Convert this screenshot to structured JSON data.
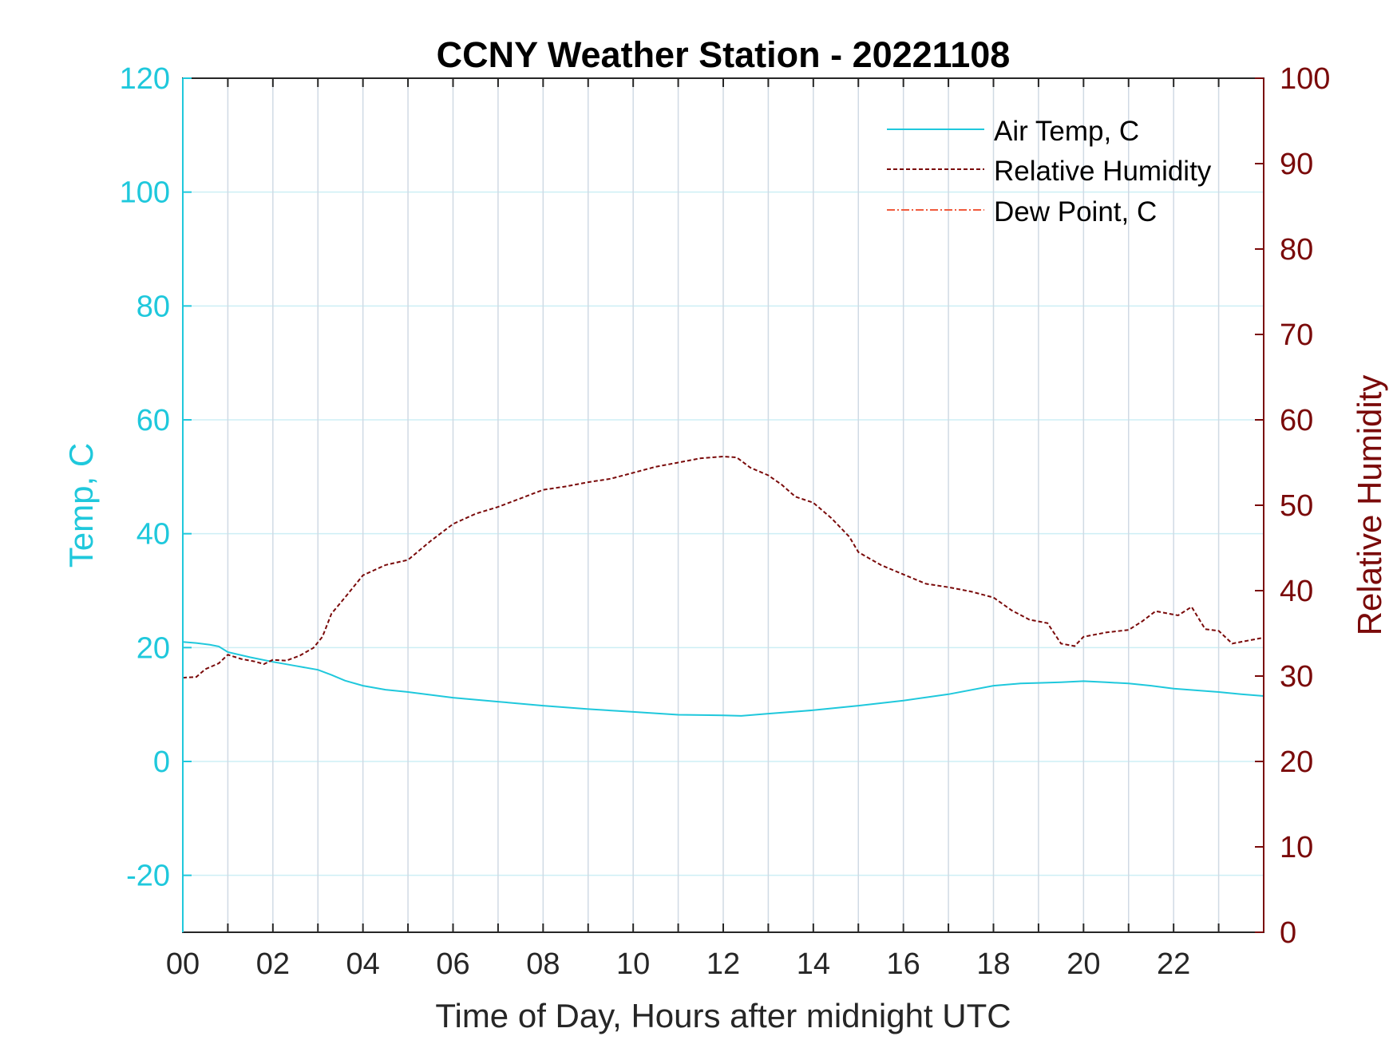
{
  "chart_data": {
    "type": "line",
    "title": "CCNY Weather Station - 20221108",
    "xlabel": "Time of Day, Hours after midnight UTC",
    "ylabel_left": "Temp, C",
    "ylabel_right": "Relative Humidity",
    "xlim": [
      0,
      24
    ],
    "ylim_left": [
      -30,
      120
    ],
    "ylim_right": [
      0,
      100
    ],
    "x_ticks": [
      0,
      2,
      4,
      6,
      8,
      10,
      12,
      14,
      16,
      18,
      20,
      22
    ],
    "x_tick_labels": [
      "00",
      "02",
      "04",
      "06",
      "08",
      "10",
      "12",
      "14",
      "16",
      "18",
      "20",
      "22"
    ],
    "x_grid": [
      0,
      1,
      2,
      3,
      4,
      5,
      6,
      7,
      8,
      9,
      10,
      11,
      12,
      13,
      14,
      15,
      16,
      17,
      18,
      19,
      20,
      21,
      22,
      23,
      24
    ],
    "y_ticks_left": [
      -20,
      0,
      20,
      40,
      60,
      80,
      100,
      120
    ],
    "y_tick_labels_left": [
      "-20",
      "0",
      "20",
      "40",
      "60",
      "80",
      "100",
      "120"
    ],
    "y_ticks_right": [
      0,
      10,
      20,
      30,
      40,
      50,
      60,
      70,
      80,
      90,
      100
    ],
    "y_tick_labels_right": [
      "0",
      "10",
      "20",
      "30",
      "40",
      "50",
      "60",
      "70",
      "80",
      "90",
      "100"
    ],
    "grid": true,
    "legend_position": "top-right",
    "colors": {
      "left_axis": "#1fc8dc",
      "right_axis": "#7a0a0a",
      "air_temp": "#1fc8dc",
      "rel_humidity": "#7a0a0a",
      "dew_point": "#f05a3c",
      "grid_vertical": "#d0dae4",
      "grid_horizontal": "#cdeff5",
      "axis_box": "#262626"
    },
    "series": [
      {
        "name": "Air Temp, C",
        "axis": "left",
        "style": "solid",
        "x": [
          0,
          0.3,
          0.6,
          0.8,
          1.0,
          1.5,
          2.0,
          2.5,
          3.0,
          3.3,
          3.6,
          4.0,
          4.5,
          5.0,
          6.0,
          7.0,
          8.0,
          9.0,
          10.0,
          11.0,
          12.0,
          12.4,
          13.0,
          14.0,
          15.0,
          16.0,
          17.0,
          18.0,
          18.6,
          19.0,
          19.5,
          20.0,
          20.5,
          21.0,
          21.5,
          22.0,
          23.0,
          23.5,
          24.0
        ],
        "values": [
          21.0,
          20.8,
          20.5,
          20.2,
          19.2,
          18.3,
          17.5,
          16.8,
          16.1,
          15.2,
          14.2,
          13.3,
          12.6,
          12.2,
          11.2,
          10.5,
          9.8,
          9.2,
          8.7,
          8.2,
          8.1,
          8.0,
          8.4,
          9.0,
          9.8,
          10.7,
          11.8,
          13.3,
          13.7,
          13.8,
          13.9,
          14.1,
          13.9,
          13.7,
          13.3,
          12.8,
          12.2,
          11.8,
          11.5
        ]
      },
      {
        "name": "Relative Humidity",
        "axis": "right",
        "style": "dashed",
        "x": [
          0,
          0.3,
          0.5,
          0.8,
          1.0,
          1.3,
          1.6,
          1.8,
          2.0,
          2.3,
          2.6,
          2.9,
          3.1,
          3.3,
          3.6,
          4.0,
          4.5,
          5.0,
          5.5,
          6.0,
          6.5,
          7.0,
          7.5,
          8.0,
          8.5,
          9.0,
          9.5,
          10.0,
          10.5,
          11.0,
          11.5,
          12.0,
          12.3,
          12.6,
          13.0,
          13.3,
          13.6,
          14.0,
          14.4,
          14.8,
          15.0,
          15.5,
          16.0,
          16.5,
          17.0,
          17.5,
          18.0,
          18.4,
          18.8,
          19.2,
          19.5,
          19.8,
          20.0,
          20.5,
          21.0,
          21.3,
          21.6,
          21.9,
          22.1,
          22.4,
          22.7,
          23.0,
          23.3,
          23.6,
          24.0
        ],
        "values": [
          29.8,
          29.9,
          30.8,
          31.5,
          32.5,
          32.0,
          31.7,
          31.4,
          31.9,
          31.8,
          32.4,
          33.3,
          34.6,
          37.3,
          39.2,
          41.8,
          43.0,
          43.6,
          45.8,
          47.8,
          49.0,
          49.8,
          50.8,
          51.8,
          52.2,
          52.7,
          53.1,
          53.8,
          54.5,
          55.0,
          55.5,
          55.7,
          55.6,
          54.4,
          53.5,
          52.4,
          51.0,
          50.3,
          48.5,
          46.3,
          44.5,
          43.0,
          41.9,
          40.8,
          40.4,
          39.9,
          39.2,
          37.7,
          36.6,
          36.2,
          33.8,
          33.5,
          34.6,
          35.1,
          35.4,
          36.4,
          37.6,
          37.3,
          37.1,
          38.1,
          35.5,
          35.3,
          33.8,
          34.1,
          34.5
        ]
      },
      {
        "name": "Dew Point, C",
        "axis": "left",
        "style": "dash-dot",
        "x": [],
        "values": []
      }
    ]
  }
}
